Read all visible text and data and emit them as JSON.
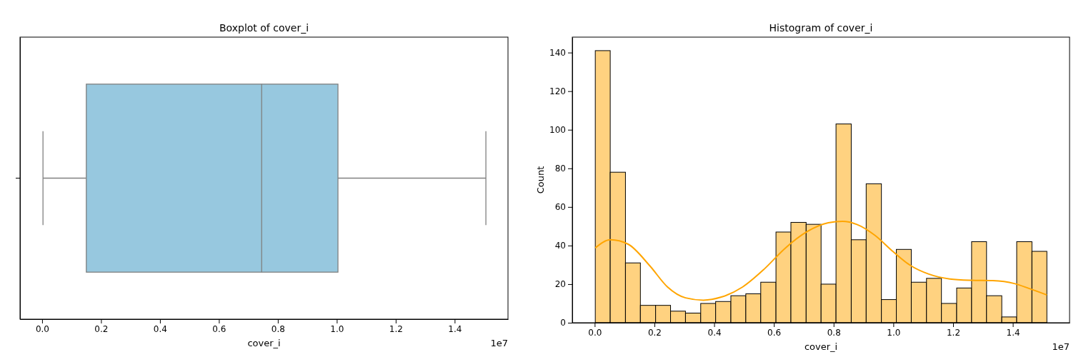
{
  "chart_data": [
    {
      "type": "box",
      "title": "Boxplot of cover_i",
      "xlabel": "cover_i",
      "orientation": "horizontal",
      "categories": [
        null
      ],
      "color": "#97c8df",
      "boxes": [
        {
          "low": 0.003,
          "q1": 0.15,
          "median": 0.745,
          "q3": 1.004,
          "high": 1.506
        }
      ],
      "xlim": [
        -0.075,
        1.581
      ],
      "xticks": [
        {
          "value": 0,
          "label": "0.0"
        },
        {
          "value": 0.2,
          "label": "0.2"
        },
        {
          "value": 0.4,
          "label": "0.4"
        },
        {
          "value": 0.6,
          "label": "0.6"
        },
        {
          "value": 0.8,
          "label": "0.8"
        },
        {
          "value": 1,
          "label": "1.0"
        },
        {
          "value": 1.2,
          "label": "1.2"
        },
        {
          "value": 1.4,
          "label": "1.4"
        }
      ],
      "annotations": [
        "1e7"
      ]
    },
    {
      "type": "histogram",
      "title": "Histogram of cover_i",
      "xlabel": "cover_i",
      "ylabel": "Count",
      "color": "#ffd280",
      "bins": [
        0.002,
        0.052,
        0.103,
        0.153,
        0.204,
        0.254,
        0.304,
        0.355,
        0.405,
        0.456,
        0.506,
        0.556,
        0.607,
        0.657,
        0.708,
        0.758,
        0.808,
        0.859,
        0.909,
        0.96,
        1.01,
        1.06,
        1.111,
        1.161,
        1.212,
        1.262,
        1.312,
        1.363,
        1.413,
        1.464,
        1.514
      ],
      "values": [
        141,
        78,
        31,
        9,
        9,
        6,
        5,
        10,
        11,
        14,
        15,
        21,
        47,
        52,
        51,
        20,
        103,
        43,
        72,
        12,
        38,
        21,
        23,
        10,
        18,
        42,
        14,
        3,
        42,
        37
      ],
      "series": [
        {
          "type": "line",
          "color": "#ffa500",
          "x": [
            0.002,
            0.053,
            0.112,
            0.184,
            0.244,
            0.304,
            0.364,
            0.424,
            0.495,
            0.567,
            0.639,
            0.711,
            0.782,
            0.83,
            0.878,
            0.938,
            0.998,
            1.058,
            1.117,
            1.189,
            1.261,
            1.333,
            1.405,
            1.452,
            1.514
          ],
          "values": [
            38.8,
            43,
            40.7,
            29.6,
            18.5,
            12.9,
            11.7,
            13.3,
            18.5,
            27.7,
            38.8,
            47.2,
            51.8,
            52.5,
            50.9,
            45.3,
            37,
            29.6,
            25.3,
            22.7,
            22,
            21.8,
            20.3,
            17.9,
            14.4
          ]
        }
      ],
      "xlim": [
        -0.075,
        1.59
      ],
      "ylim": [
        0,
        148
      ],
      "xticks": [
        {
          "value": 0,
          "label": "0.0"
        },
        0.2,
        0.4,
        0.6,
        0.8,
        {
          "value": 1,
          "label": "1.0"
        },
        1.2,
        1.4
      ],
      "yticks": [
        0,
        20,
        40,
        60,
        80,
        100,
        120,
        140
      ],
      "annotations": [
        "1e7"
      ]
    }
  ]
}
